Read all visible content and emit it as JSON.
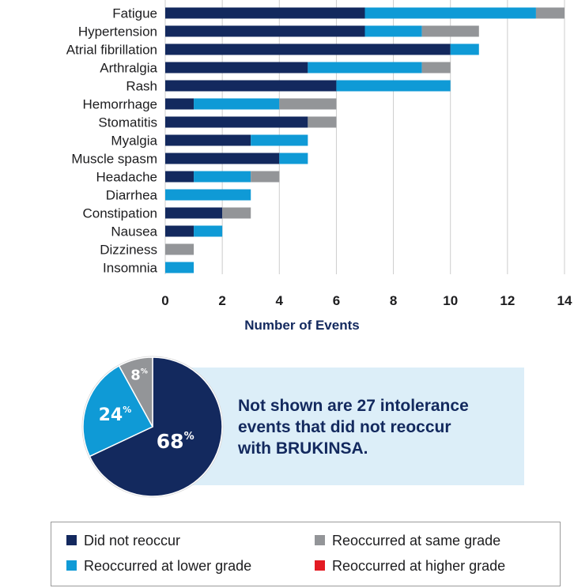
{
  "colors": {
    "did_not_reoccur": "#13295e",
    "lower_grade": "#0f9ad6",
    "same_grade": "#939598",
    "higher_grade": "#e31b23",
    "callout_bg": "#dceef8",
    "axis_text": "#13295e"
  },
  "chart_data": [
    {
      "type": "bar",
      "orientation": "horizontal",
      "stacked": true,
      "categories": [
        "Fatigue",
        "Hypertension",
        "Atrial fibrillation",
        "Arthralgia",
        "Rash",
        "Hemorrhage",
        "Stomatitis",
        "Myalgia",
        "Muscle spasm",
        "Headache",
        "Diarrhea",
        "Constipation",
        "Nausea",
        "Dizziness",
        "Insomnia"
      ],
      "series": [
        {
          "name": "Did not reoccur",
          "values": [
            7,
            7,
            10,
            5,
            6,
            1,
            5,
            3,
            4,
            1,
            0,
            2,
            1,
            0,
            0
          ]
        },
        {
          "name": "Reoccurred at lower grade",
          "values": [
            6,
            2,
            1,
            4,
            4,
            3,
            0,
            2,
            1,
            2,
            3,
            0,
            1,
            0,
            1
          ]
        },
        {
          "name": "Reoccurred at same grade",
          "values": [
            1,
            2,
            0,
            1,
            0,
            2,
            1,
            0,
            0,
            1,
            0,
            1,
            0,
            1,
            0
          ]
        },
        {
          "name": "Reoccurred at higher grade",
          "values": [
            0,
            0,
            0,
            0,
            0,
            0,
            0,
            0,
            0,
            0,
            0,
            0,
            0,
            0,
            0
          ]
        }
      ],
      "xlabel": "Number of Events",
      "xlim": [
        0,
        14
      ],
      "xticks": [
        0,
        2,
        4,
        6,
        8,
        10,
        12,
        14
      ],
      "grid": true
    },
    {
      "type": "pie",
      "slices": [
        {
          "name": "Did not reoccur",
          "value": 68,
          "label": "68"
        },
        {
          "name": "Reoccurred at lower grade",
          "value": 24,
          "label": "24"
        },
        {
          "name": "Reoccurred at same grade",
          "value": 8,
          "label": "8"
        }
      ],
      "unit_symbol": "%"
    }
  ],
  "callout": {
    "lines": [
      "Not shown are 27 intolerance",
      "events that did not reoccur",
      "with BRUKINSA."
    ]
  },
  "legend": {
    "placement": "bottom",
    "items": [
      {
        "label": "Did not reoccur",
        "color": "#13295e"
      },
      {
        "label": "Reoccurred at same grade",
        "color": "#939598"
      },
      {
        "label": "Reoccurred at lower grade",
        "color": "#0f9ad6"
      },
      {
        "label": "Reoccurred at higher grade",
        "color": "#e31b23"
      }
    ]
  }
}
